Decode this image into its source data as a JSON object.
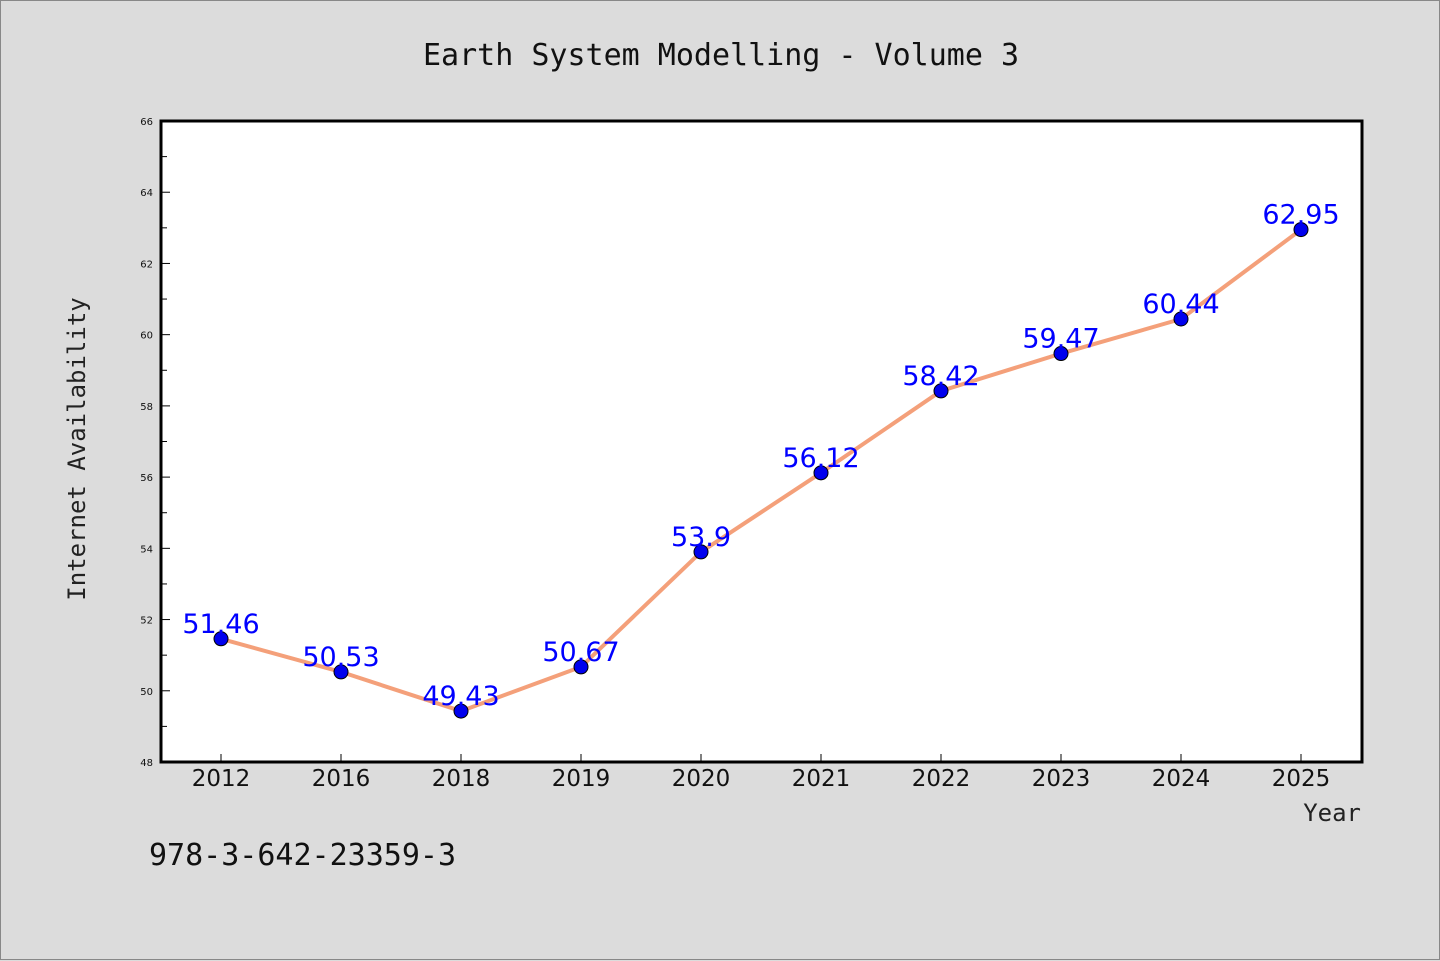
{
  "chart_data": {
    "type": "line",
    "title": "Earth System Modelling - Volume 3",
    "xlabel": "Year",
    "ylabel": "Internet Availability",
    "categories": [
      "2012",
      "2016",
      "2018",
      "2019",
      "2020",
      "2021",
      "2022",
      "2023",
      "2024",
      "2025"
    ],
    "series": [
      {
        "values": [
          51.46,
          50.53,
          49.43,
          50.67,
          53.9,
          56.12,
          58.42,
          59.47,
          60.44,
          62.95
        ],
        "data_labels": [
          "51.46",
          "50.53",
          "49.43",
          "50.67",
          "53.9",
          "56.12",
          "58.42",
          "59.47",
          "60.44",
          "62.95"
        ],
        "line_color": "#f4a07a",
        "marker_color": "#0000ee",
        "label_color": "#0000ff"
      }
    ],
    "ylim": [
      48,
      66
    ],
    "yticks": [
      "48",
      "50",
      "52",
      "54",
      "56",
      "58",
      "60",
      "62",
      "64",
      "66"
    ],
    "grid": false,
    "legend": "none"
  },
  "footer": {
    "isbn": "978-3-642-23359-3"
  },
  "colors": {
    "background": "#dcdcdc",
    "plot_background": "#ffffff"
  }
}
